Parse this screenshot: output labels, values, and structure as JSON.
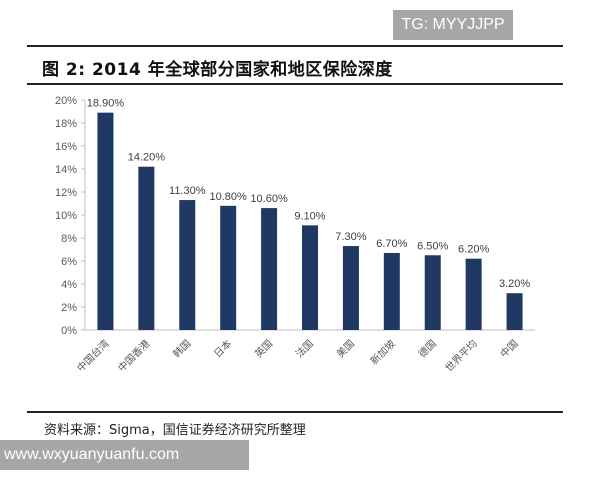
{
  "watermark_top": "TG: MYYJJPP",
  "watermark_bottom": "www.wxyuanyuanfu.com",
  "title": "图 2:  2014 年全球部分国家和地区保险深度",
  "source": "资料来源：Sigma，国信证券经济研究所整理",
  "chart_data": {
    "type": "bar",
    "categories": [
      "中国台湾",
      "中国香港",
      "韩国",
      "日本",
      "英国",
      "法国",
      "美国",
      "新加坡",
      "德国",
      "世界平均",
      "中国"
    ],
    "values": [
      18.9,
      14.2,
      11.3,
      10.8,
      10.6,
      9.1,
      7.3,
      6.7,
      6.5,
      6.2,
      3.2
    ],
    "data_labels": [
      "18.90%",
      "14.20%",
      "11.30%",
      "10.80%",
      "10.60%",
      "9.10%",
      "7.30%",
      "6.70%",
      "6.50%",
      "6.20%",
      "3.20%"
    ],
    "y_ticks": [
      "0%",
      "2%",
      "4%",
      "6%",
      "8%",
      "10%",
      "12%",
      "14%",
      "16%",
      "18%",
      "20%"
    ],
    "ylim": [
      0,
      20
    ],
    "grid": false,
    "bar_color": "#1f3864"
  }
}
